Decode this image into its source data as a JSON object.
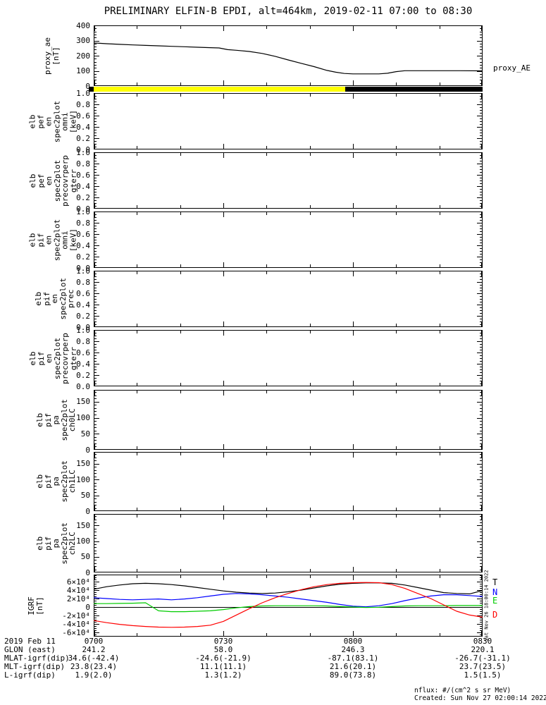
{
  "title": "PRELIMINARY ELFIN-B EPDI, alt=464km, 2019-02-11 07:00 to 08:30",
  "right_axis_label": "proxy_AE",
  "side_timestamp": "Sat Nov 26 18:00:14 2022",
  "colors": {
    "background": "#ffffff",
    "foreground": "#000000",
    "science_zone_yellow": "#ffff00",
    "trace_T": "#000000",
    "trace_N": "#0000ff",
    "trace_E": "#00cc00",
    "trace_D": "#ff0000"
  },
  "legend": [
    {
      "label": "T",
      "color": "#000000"
    },
    {
      "label": "N",
      "color": "#0000ff"
    },
    {
      "label": "E",
      "color": "#00cc00"
    },
    {
      "label": "D",
      "color": "#ff0000"
    }
  ],
  "zone_bar": {
    "cap_color": "#000000",
    "segments": [
      {
        "color": "#ffff00",
        "from": 0.0,
        "to": 0.647
      },
      {
        "color": "#000000",
        "from": 0.647,
        "to": 1.0
      }
    ]
  },
  "footer": {
    "row_labels": [
      "2019 Feb 11",
      "GLON (east)",
      "MLAT-igrf(dip)",
      "MLT-igrf(dip)",
      "L-igrf(dip)"
    ],
    "columns": [
      [
        "0700",
        "241.2",
        "34.6(-42.4)",
        "23.8(23.4)",
        "1.9(2.0)"
      ],
      [
        "0730",
        "58.0",
        "-24.6(-21.9)",
        "11.1(11.1)",
        "1.3(1.2)"
      ],
      [
        "0800",
        "246.3",
        "-87.1(83.1)",
        "21.6(20.1)",
        "89.0(73.8)"
      ],
      [
        "0830",
        "220.1",
        "-26.7(-31.1)",
        "23.7(23.5)",
        "1.5(1.5)"
      ]
    ],
    "nflux_note": "nflux: #/(cm^2 s sr MeV)",
    "created_note": "Created: Sun Nov 27 02:00:14 2022"
  },
  "chart_data": {
    "type": "line",
    "x_axis": {
      "start_label": "0700",
      "end_label": "0830",
      "range_minutes": [
        0,
        90
      ],
      "major_tick_minutes": 30,
      "minor_tick_minutes": 10,
      "labels": [
        "0700",
        "0730",
        "0800",
        "0830"
      ]
    },
    "panels": [
      {
        "name": "proxy_ae",
        "ylabel_lines": [
          "proxy_ae",
          "[nT]"
        ],
        "ylim": [
          0,
          400
        ],
        "ytick_values": [
          0,
          100,
          200,
          300,
          400
        ],
        "ytick_labels": [
          "0",
          "100",
          "200",
          "300",
          "400"
        ],
        "yminor_step": 20,
        "series": [
          {
            "name": "proxy_AE",
            "color": "#000000",
            "x": [
              0,
              3,
              6,
              9,
              12,
              15,
              18,
              21,
              24,
              27,
              29,
              31,
              33,
              36,
              39,
              42,
              45,
              48,
              51,
              54,
              56,
              58,
              60,
              62,
              64,
              66,
              68,
              70,
              72,
              75,
              80,
              85,
              90
            ],
            "y": [
              284,
              279,
              275,
              271,
              268,
              265,
              262,
              259,
              256,
              253,
              251,
              240,
              236,
              228,
              215,
              196,
              172,
              150,
              128,
              103,
              91,
              83,
              80,
              80,
              80,
              80,
              84,
              95,
              101,
              101,
              101,
              101,
              100
            ]
          }
        ]
      },
      {
        "name": "elb_pef_en_spec2plot_omni",
        "ylabel_lines": [
          "elb",
          "pef",
          "en",
          "spec2plot",
          "omni",
          "[keV]"
        ],
        "ylim": [
          0,
          1
        ],
        "ytick_values": [
          0,
          0.2,
          0.4,
          0.6,
          0.8,
          1.0
        ],
        "ytick_labels": [
          "0.0",
          "0.2",
          "0.4",
          "0.6",
          "0.8",
          "1.0"
        ],
        "yminor_step": 0.05,
        "series": []
      },
      {
        "name": "elb_pef_en_spec2plot_precovrperp_gterr",
        "ylabel_lines": [
          "elb",
          "pef",
          "en",
          "spec2plot",
          "precovrperp",
          "gterr"
        ],
        "ylim": [
          0,
          1
        ],
        "ytick_values": [
          0,
          0.2,
          0.4,
          0.6,
          0.8,
          1.0
        ],
        "ytick_labels": [
          "0.0",
          "0.2",
          "0.4",
          "0.6",
          "0.8",
          "1.0"
        ],
        "yminor_step": 0.05,
        "series": []
      },
      {
        "name": "elb_pif_en_spec2plot_omni",
        "ylabel_lines": [
          "elb",
          "pif",
          "en",
          "spec2plot",
          "omni",
          "[keV]"
        ],
        "ylim": [
          0,
          1
        ],
        "ytick_values": [
          0,
          0.2,
          0.4,
          0.6,
          0.8,
          1.0
        ],
        "ytick_labels": [
          "0.0",
          "0.2",
          "0.4",
          "0.6",
          "0.8",
          "1.0"
        ],
        "yminor_step": 0.05,
        "series": []
      },
      {
        "name": "elb_pif_en_spec2plot_prec",
        "ylabel_lines": [
          "elb",
          "pif",
          "en",
          "spec2plot",
          "prec"
        ],
        "ylim": [
          0,
          1
        ],
        "ytick_values": [
          0,
          0.2,
          0.4,
          0.6,
          0.8,
          1.0
        ],
        "ytick_labels": [
          "0.0",
          "0.2",
          "0.4",
          "0.6",
          "0.8",
          "1.0"
        ],
        "yminor_step": 0.05,
        "series": []
      },
      {
        "name": "elb_pif_en_spec2plot_precovrperp_gterr",
        "ylabel_lines": [
          "elb",
          "pif",
          "en",
          "spec2plot",
          "precovrperp",
          "gterr"
        ],
        "ylim": [
          0,
          1
        ],
        "ytick_values": [
          0,
          0.2,
          0.4,
          0.6,
          0.8,
          1.0
        ],
        "ytick_labels": [
          "0.0",
          "0.2",
          "0.4",
          "0.6",
          "0.8",
          "1.0"
        ],
        "yminor_step": 0.05,
        "series": []
      },
      {
        "name": "elb_pif_pa_spec2plot_ch0LC",
        "ylabel_lines": [
          "elb",
          "pif",
          "pa",
          "spec2plot",
          "ch0LC"
        ],
        "ylim": [
          0,
          187
        ],
        "ytick_values": [
          0,
          50,
          100,
          150
        ],
        "ytick_labels": [
          "0",
          "50",
          "100",
          "150"
        ],
        "yminor_step": 10,
        "series": []
      },
      {
        "name": "elb_pif_pa_spec2plot_ch1LC",
        "ylabel_lines": [
          "elb",
          "pif",
          "pa",
          "spec2plot",
          "ch1LC"
        ],
        "ylim": [
          0,
          187
        ],
        "ytick_values": [
          0,
          50,
          100,
          150
        ],
        "ytick_labels": [
          "0",
          "50",
          "100",
          "150"
        ],
        "yminor_step": 10,
        "series": []
      },
      {
        "name": "elb_pif_pa_spec2plot_ch2LC",
        "ylabel_lines": [
          "elb",
          "pif",
          "pa",
          "spec2plot",
          "ch2LC"
        ],
        "ylim": [
          0,
          187
        ],
        "ytick_values": [
          0,
          50,
          100,
          150
        ],
        "ytick_labels": [
          "0",
          "50",
          "100",
          "150"
        ],
        "yminor_step": 10,
        "series": []
      },
      {
        "name": "igrf",
        "ylabel_lines": [
          "IGRF",
          "[nT]"
        ],
        "ylim": [
          -70000,
          76700
        ],
        "ytick_values": [
          -60000,
          -40000,
          -20000,
          0,
          20000,
          40000,
          60000
        ],
        "ytick_labels": [
          "-6×10⁴",
          "-4×10⁴",
          "-2×10⁴",
          "0",
          "2×10⁴",
          "4×10⁴",
          "6×10⁴"
        ],
        "yminor_step": 5000,
        "zero_line": 0,
        "series": [
          {
            "name": "T",
            "color": "#000000",
            "x": [
              0,
              3,
              6,
              9,
              12,
              15,
              18,
              21,
              24,
              27,
              30,
              33,
              36,
              39,
              42,
              45,
              48,
              51,
              54,
              57,
              60,
              63,
              66,
              69,
              72,
              75,
              78,
              81,
              84,
              87,
              90
            ],
            "y": [
              42000,
              48000,
              52000,
              55000,
              56000,
              55000,
              53000,
              50000,
              46000,
              42000,
              38000,
              35000,
              33000,
              32000,
              33000,
              36000,
              40000,
              45000,
              50000,
              54000,
              56000,
              57000,
              57000,
              56000,
              52000,
              46000,
              40000,
              34000,
              32000,
              31000,
              39000
            ]
          },
          {
            "name": "N",
            "color": "#0000ff",
            "x": [
              0,
              3,
              6,
              9,
              12,
              15,
              18,
              21,
              24,
              27,
              30,
              33,
              36,
              39,
              42,
              45,
              48,
              51,
              54,
              57,
              60,
              63,
              66,
              69,
              72,
              75,
              78,
              81,
              84,
              87,
              90
            ],
            "y": [
              22000,
              20000,
              18000,
              17000,
              18000,
              19000,
              17000,
              19000,
              22000,
              26000,
              30000,
              32000,
              31000,
              29000,
              26000,
              23000,
              19000,
              15000,
              11000,
              6000,
              2000,
              500,
              3000,
              8000,
              15000,
              21000,
              26000,
              29000,
              29000,
              27000,
              25000
            ]
          },
          {
            "name": "E",
            "color": "#00cc00",
            "x": [
              0,
              3,
              6,
              9,
              12,
              15,
              18,
              21,
              24,
              27,
              30,
              33,
              36,
              39,
              42,
              45,
              48,
              51,
              54,
              57,
              60,
              63,
              66,
              69,
              72,
              75,
              78,
              81,
              84,
              87,
              90
            ],
            "y": [
              8000,
              8000,
              8500,
              9000,
              10000,
              -9000,
              -11000,
              -11000,
              -10000,
              -9000,
              -6000,
              -2000,
              1000,
              2500,
              3000,
              3000,
              3000,
              3000,
              2500,
              1000,
              0,
              -1000,
              -500,
              1000,
              2500,
              3000,
              3000,
              3000,
              3500,
              3500,
              3500
            ]
          },
          {
            "name": "D",
            "color": "#ff0000",
            "x": [
              0,
              3,
              6,
              9,
              12,
              15,
              18,
              21,
              24,
              27,
              30,
              33,
              36,
              39,
              42,
              45,
              48,
              51,
              54,
              57,
              60,
              63,
              66,
              69,
              72,
              75,
              78,
              81,
              84,
              87,
              90
            ],
            "y": [
              -32000,
              -37000,
              -41000,
              -44000,
              -46000,
              -47500,
              -48000,
              -47500,
              -46000,
              -43000,
              -34000,
              -19000,
              -4000,
              10000,
              22000,
              32000,
              41000,
              48000,
              53000,
              56000,
              57500,
              58000,
              57500,
              53000,
              44000,
              32000,
              20000,
              5000,
              -10000,
              -19000,
              -24000
            ]
          }
        ]
      }
    ]
  }
}
